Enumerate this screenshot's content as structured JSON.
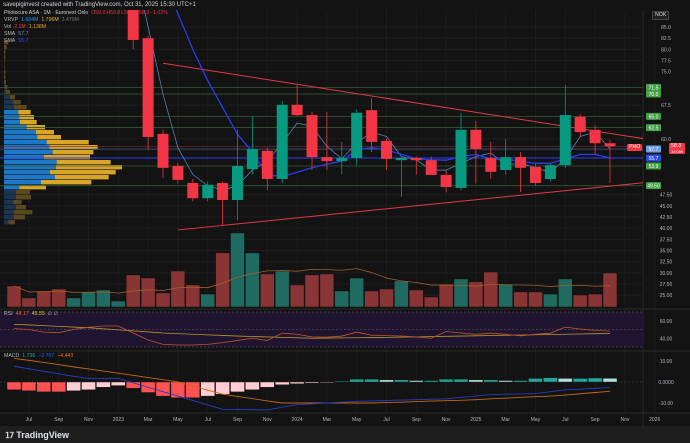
{
  "top_bar": {
    "caption": "savepiginvest created with TradingView.com, Oct 31, 2025 15:30 UTC+1"
  },
  "legend": {
    "symbol": "Photocure ASA · 1M · Euronext Oslo",
    "o": "O59.0",
    "h": "H59.8",
    "l": "L50.1",
    "c": "C58.3",
    "change": "−1.02%",
    "vrvp": {
      "label": "VRVP",
      "up": "1.684M",
      "down": "1.796M",
      "total": "3.479M"
    },
    "vol": {
      "label": "Vol",
      "v1": "2.1M",
      "v2": "1.138M"
    },
    "sma1": {
      "label": "SMA",
      "value": "57.7"
    },
    "sma2": {
      "label": "SMA",
      "value": "55.7"
    }
  },
  "rsi_legend": {
    "label": "RSI",
    "v1": "48.17",
    "v2": "45.55",
    "extra": "∅ ∅"
  },
  "macd_legend": {
    "label": "MACD",
    "hist": "1.736",
    "macd": "−2.707",
    "signal": "−4.443"
  },
  "currency": "NOK",
  "price_tag": {
    "symbol": "PHO",
    "price": "58.3",
    "countdown": "1d 08h"
  },
  "colors": {
    "up": "#089981",
    "down": "#f23645",
    "vol_up": "#1f6b61",
    "vol_down": "#8a3535",
    "sma_fast": "#5b7fb0",
    "sma_slow": "#2a3cf0",
    "level": "#43a047",
    "trend": "#e03a4a",
    "rsi": "#c0552a",
    "rsi_ma": "#b89a2e",
    "macd": "#2a3cc0",
    "signal": "#c06a1a"
  },
  "chart_data": [
    {
      "type": "candlestick",
      "title": "Photocure ASA · 1M · Euronext Oslo",
      "ylim": [
        25,
        85
      ],
      "y_ticks": [
        "85.0",
        "82.5",
        "80.0",
        "77.5",
        "75.0",
        "67.5",
        "60.0",
        "47.50",
        "45.00",
        "42.50",
        "40.00",
        "37.50",
        "35.00",
        "32.50",
        "30.00",
        "27.50",
        "25.00"
      ],
      "x_ticks": [
        "Jul",
        "Sep",
        "Nov",
        "2023",
        "Mar",
        "May",
        "Jul",
        "Sep",
        "Nov",
        "2024",
        "Mar",
        "May",
        "Jul",
        "Sep",
        "Nov",
        "2025",
        "Mar",
        "May",
        "Jul",
        "Sep",
        "Nov",
        "2026"
      ],
      "months": [
        "2022-06",
        "2022-07",
        "2022-08",
        "2022-09",
        "2022-10",
        "2022-11",
        "2022-12",
        "2023-01",
        "2023-02",
        "2023-03",
        "2023-04",
        "2023-05",
        "2023-06",
        "2023-07",
        "2023-08",
        "2023-09",
        "2023-10",
        "2023-11",
        "2023-12",
        "2024-01",
        "2024-02",
        "2024-03",
        "2024-04",
        "2024-05",
        "2024-06",
        "2024-07",
        "2024-08",
        "2024-09",
        "2024-10",
        "2024-11",
        "2024-12",
        "2025-01",
        "2025-02",
        "2025-03",
        "2025-04",
        "2025-05",
        "2025-06",
        "2025-07",
        "2025-08",
        "2025-09",
        "2025-10"
      ],
      "ohlc": [
        [
          "2023-02",
          95,
          97,
          80,
          82.1
        ],
        [
          "2023-03",
          82.5,
          83,
          57.5,
          60.4
        ],
        [
          "2023-04",
          61.1,
          62,
          51.2,
          53.5
        ],
        [
          "2023-05",
          53.9,
          54.6,
          50,
          50.8
        ],
        [
          "2023-06",
          50.1,
          51,
          46,
          46.7
        ],
        [
          "2023-07",
          46.7,
          50.5,
          46,
          49.7
        ],
        [
          "2023-08",
          50.1,
          50.5,
          40.7,
          46.3
        ],
        [
          "2023-09",
          46.3,
          62,
          41.8,
          53.9
        ],
        [
          "2023-10",
          53.2,
          65.1,
          52,
          57.7
        ],
        [
          "2023-11",
          57.3,
          58,
          48.5,
          51.0
        ],
        [
          "2023-12",
          51.0,
          68.5,
          50,
          67.6
        ],
        [
          "2024-01",
          67.6,
          72,
          65,
          65.3
        ],
        [
          "2024-02",
          65.3,
          66,
          53,
          55.9
        ],
        [
          "2024-03",
          55.9,
          66,
          53,
          55.0
        ],
        [
          "2024-04",
          55.0,
          59.3,
          52,
          55.7
        ],
        [
          "2024-05",
          55.7,
          66.5,
          54,
          65.8
        ],
        [
          "2024-06",
          66.4,
          69.1,
          57,
          59.3
        ],
        [
          "2024-07",
          59.5,
          60,
          53,
          55.5
        ],
        [
          "2024-08",
          55.2,
          56,
          47,
          55.7
        ],
        [
          "2024-09",
          55.7,
          56,
          52,
          55.2
        ],
        [
          "2024-10",
          55.2,
          56,
          52,
          51.9
        ],
        [
          "2024-11",
          51.9,
          53,
          48,
          49.2
        ],
        [
          "2024-12",
          49.0,
          65.8,
          48.5,
          62.0
        ],
        [
          "2025-01",
          62.0,
          64,
          50,
          57.7
        ],
        [
          "2025-02",
          55.7,
          59.3,
          51,
          52.6
        ],
        [
          "2025-03",
          53.0,
          60,
          52,
          55.9
        ],
        [
          "2025-04",
          55.9,
          57,
          48.1,
          53.5
        ],
        [
          "2025-05",
          53.7,
          54.5,
          49.5,
          50.1
        ],
        [
          "2025-06",
          51.0,
          54.5,
          50.5,
          54.1
        ],
        [
          "2025-07",
          54.1,
          72,
          53.5,
          65.3
        ],
        [
          "2025-08",
          64.9,
          65.5,
          60.5,
          61.5
        ],
        [
          "2025-09",
          62.0,
          63,
          56.5,
          59.0
        ],
        [
          "2025-10",
          59.0,
          59.8,
          50.1,
          58.3
        ]
      ],
      "volume_millions": [
        1.3,
        0.56,
        0.99,
        1.11,
        0.56,
        0.93,
        1.05,
        0.37,
        1.98,
        1.79,
        0.87,
        2.22,
        1.36,
        0.8,
        3.34,
        4.57,
        3.34,
        2.04,
        2.22,
        1.36,
        1.98,
        2.04,
        0.99,
        1.79,
        0.99,
        1.11,
        1.61,
        1.05,
        0.62,
        1.42,
        1.73,
        1.55,
        2.16,
        1.42,
        0.93,
        0.93,
        0.8,
        1.73,
        0.74,
        0.8,
        2.1
      ],
      "volume_direction": [
        "d",
        "d",
        "d",
        "d",
        "u",
        "u",
        "u",
        "u",
        "d",
        "d",
        "d",
        "d",
        "d",
        "u",
        "d",
        "u",
        "u",
        "d",
        "u",
        "d",
        "d",
        "d",
        "u",
        "u",
        "d",
        "d",
        "u",
        "d",
        "d",
        "d",
        "u",
        "d",
        "d",
        "u",
        "d",
        "d",
        "u",
        "u",
        "d",
        "d",
        "d"
      ],
      "sma_fast": {
        "start": "2023-02",
        "values": [
          100,
          85,
          70,
          58,
          52,
          49.5,
          48.5,
          49.5,
          53,
          55,
          59,
          63.5,
          62.8,
          58.3,
          55.5,
          59,
          61.5,
          60.5,
          56,
          55.3,
          53,
          53,
          54.5,
          56,
          56.8,
          54.2,
          54.5,
          53.5,
          52.5,
          55.5,
          60.5,
          61.5,
          57.7
        ]
      },
      "sma_slow": {
        "start": "2023-04",
        "values": [
          95,
          88,
          80,
          73,
          67,
          61,
          57,
          52,
          51.5,
          52.5,
          53.5,
          54.3,
          55,
          57.5,
          58,
          57.5,
          56.5,
          55.5,
          55.3,
          55.2,
          56,
          56.5,
          55.5,
          55.4,
          55,
          54.5,
          54.5,
          55.5,
          56.5,
          56.5,
          55.7
        ]
      },
      "levels": [
        71.5,
        70.0,
        65.0,
        62.5,
        53.9,
        49.5
      ],
      "level_labels": [
        "71.5",
        "70.0",
        "65.0",
        "62.5",
        "53.9",
        "49.50"
      ],
      "sma_tags": [
        "57.7",
        "55.7"
      ],
      "trendlines": [
        {
          "from": [
            "2023-04",
            76.9
          ],
          "to": [
            "2025-10",
            61.2
          ]
        },
        {
          "from": [
            "2023-05",
            39.6
          ],
          "to": [
            "2025-10",
            49.4
          ]
        }
      ],
      "volume_profile": {
        "top_price": 82.1,
        "row_step": 1.12,
        "value_area_rows": [
          14,
          29
        ],
        "rows_up_down": [
          [
            0,
            13
          ],
          [
            0,
            8
          ],
          [
            0,
            4
          ],
          [
            0,
            4
          ],
          [
            0,
            2
          ],
          [
            0,
            2
          ],
          [
            0,
            4
          ],
          [
            0,
            4
          ],
          [
            0,
            6
          ],
          [
            2,
            8
          ],
          [
            6,
            12
          ],
          [
            18,
            15
          ],
          [
            28,
            22
          ],
          [
            30,
            38
          ],
          [
            43,
            37
          ],
          [
            46,
            44
          ],
          [
            48,
            50
          ],
          [
            68,
            55
          ],
          [
            96,
            54
          ],
          [
            100,
            71
          ],
          [
            128,
            126
          ],
          [
            136,
            145
          ],
          [
            146,
            122
          ],
          [
            120,
            138
          ],
          [
            158,
            162
          ],
          [
            156,
            198
          ],
          [
            138,
            197
          ],
          [
            153,
            161
          ],
          [
            111,
            151
          ],
          [
            46,
            80
          ],
          [
            36,
            42
          ],
          [
            36,
            45
          ],
          [
            28,
            25
          ],
          [
            36,
            30
          ],
          [
            30,
            55
          ],
          [
            30,
            33
          ],
          [
            13,
            20
          ]
        ]
      }
    },
    {
      "type": "line",
      "title": "RSI",
      "ylim": [
        30,
        70
      ],
      "y_ticks": [
        "60.00",
        "40.00"
      ],
      "rsi": [
        51,
        50,
        47,
        46.5,
        50,
        52.5,
        54,
        54,
        46,
        38,
        33,
        32.3,
        32.3,
        33,
        35,
        37.5,
        40,
        37.5,
        45.8,
        44.6,
        41.5,
        41.2,
        42.5,
        46.9,
        43.5,
        43,
        42.5,
        41.5,
        40,
        47.7,
        46,
        44.5,
        45.8,
        44.5,
        42.8,
        44.5,
        45.8,
        52.7,
        50.5,
        49,
        48.17
      ],
      "rsi_ma": [
        56,
        55.2,
        54.4,
        53.6,
        52.8,
        52,
        50.8,
        49.6,
        48.4,
        47.2,
        46,
        45.3,
        44.6,
        43.9,
        43.2,
        42.5,
        42,
        41.5,
        41,
        40.5,
        40,
        40.2,
        40.4,
        40.6,
        40.8,
        41,
        41.3,
        41.6,
        41.9,
        42.2,
        42.5,
        42.8,
        43.1,
        43.4,
        43.7,
        44,
        44.3,
        44.6,
        44.9,
        45.2,
        45.55
      ]
    },
    {
      "type": "bar+line",
      "title": "MACD",
      "y_ticks": [
        "10.00",
        "0.0000",
        "-10.00"
      ],
      "histogram": [
        -3.7,
        -4.2,
        -4.7,
        -4.7,
        -4.2,
        -3.7,
        -2.5,
        -1.7,
        -3,
        -5,
        -6.7,
        -7.5,
        -7.5,
        -6.7,
        -5.8,
        -4.7,
        -3.7,
        -2.5,
        -1.3,
        -0.8,
        -0.5,
        -0.3,
        0.3,
        1.3,
        1.3,
        1,
        1,
        0.7,
        0.7,
        1.3,
        1.3,
        1,
        1,
        0.7,
        0.7,
        1.7,
        2,
        1.7,
        1.7,
        1.9,
        1.736
      ],
      "macd": [
        7.5,
        6.3,
        5.1,
        3.9,
        2.7,
        1.7,
        1.7,
        1.7,
        -0.4,
        -2.5,
        -4.6,
        -6.7,
        -8.8,
        -10.9,
        -13,
        -13.1,
        -13.2,
        -13.3,
        -12,
        -10.8,
        -10.4,
        -10,
        -9.6,
        -9.2,
        -9,
        -8.8,
        -8.6,
        -8.4,
        -8.2,
        -8,
        -7.3,
        -6.7,
        -6,
        -5.8,
        -5.7,
        -5.5,
        -4.6,
        -3.7,
        -3.4,
        -3.0,
        -2.707
      ],
      "signal": [
        11.3,
        10.3,
        9.3,
        8.3,
        7.2,
        6.2,
        5.2,
        4.2,
        3.2,
        2.1,
        1.1,
        0,
        -1.9,
        -3.9,
        -5.8,
        -6.9,
        -7.9,
        -9,
        -10,
        -10,
        -10,
        -10,
        -10,
        -10,
        -10,
        -9.8,
        -9.6,
        -9.3,
        -9.1,
        -8.9,
        -8.7,
        -8.4,
        -8,
        -7.7,
        -7.3,
        -7,
        -6.7,
        -6.2,
        -5.6,
        -5,
        -4.443
      ]
    }
  ]
}
